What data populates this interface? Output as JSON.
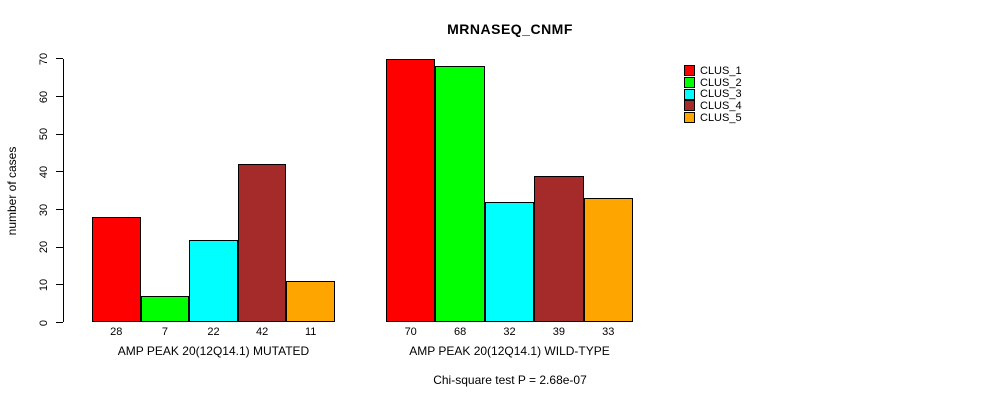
{
  "chart_data": {
    "type": "bar",
    "grouped": true,
    "title": "MRNASEQ_CNMF",
    "xlabel": "",
    "ylabel": "number of cases",
    "annotation": "Chi-square test P = 2.68e-07",
    "categories": [
      "AMP PEAK 20(12Q14.1) MUTATED",
      "AMP PEAK 20(12Q14.1) WILD-TYPE"
    ],
    "series": [
      {
        "name": "CLUS_1",
        "color": "#FF0000",
        "values": [
          28,
          70
        ]
      },
      {
        "name": "CLUS_2",
        "color": "#00FF00",
        "values": [
          7,
          68
        ]
      },
      {
        "name": "CLUS_3",
        "color": "#00FFFF",
        "values": [
          22,
          32
        ]
      },
      {
        "name": "CLUS_4",
        "color": "#A52A2A",
        "values": [
          42,
          39
        ]
      },
      {
        "name": "CLUS_5",
        "color": "#FFA500",
        "values": [
          11,
          33
        ]
      }
    ],
    "bar_value_labels": [
      [
        28,
        7,
        22,
        42,
        11
      ],
      [
        70,
        68,
        32,
        39,
        33
      ]
    ],
    "ylim": [
      0,
      70
    ],
    "yticks": [
      0,
      10,
      20,
      30,
      40,
      50,
      60,
      70
    ],
    "grid": false,
    "legend_position": "top-right",
    "background_color": "#FFFFFF",
    "axis_color": "#000000"
  }
}
